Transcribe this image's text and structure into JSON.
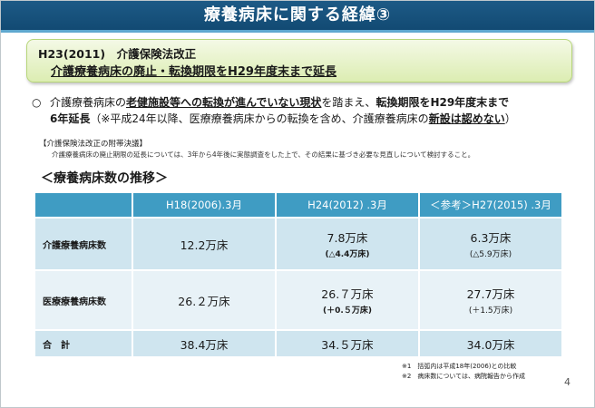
{
  "title": "療養病床に関する経緯③",
  "headline": {
    "line1": "H23(2011)　介護保険法改正",
    "line2": "介護療養病床の廃止・転換期限をH29年度末まで延長"
  },
  "bullet": {
    "mark": "○",
    "p1": "介護療養病床の",
    "p2": "老健施設等への転換が進んでいない現状",
    "p3": "を踏まえ、",
    "p4": "転換期限をH29年度末まで",
    "p5": "6年延長",
    "p6": "（※平成24年以降、医療療養病床からの転換を含め、介護療養病床の",
    "p7": "新設は認めない",
    "p8": "）"
  },
  "note": {
    "heading": "【介護保険法改正の附帯決議】",
    "body": "介護療養病床の廃止期限の延長については、3年から4年後に実態調査をした上で、その結果に基づき必要な見直しについて検討すること。"
  },
  "section_title": "＜療養病床数の推移＞",
  "table": {
    "headers": [
      "H18(2006).3月",
      "H24(2012) .3月",
      "＜参考＞H27(2015) .3月"
    ],
    "rows": [
      {
        "label": "介護療養病床数",
        "cells": [
          {
            "value": "12.2万床",
            "sub": ""
          },
          {
            "value": "7.8万床",
            "sub": "(△4.4万床)"
          },
          {
            "value": "6.3万床",
            "sub": "(△5.9万床)"
          }
        ]
      },
      {
        "label": "医療療養病床数",
        "cells": [
          {
            "value": "26.２万床",
            "sub": ""
          },
          {
            "value": "26.７万床",
            "sub": "(＋0.５万床)"
          },
          {
            "value": "27.7万床",
            "sub": "(＋1.5万床)"
          }
        ]
      },
      {
        "label": "合　計",
        "cells": [
          {
            "value": "38.4万床",
            "sub": ""
          },
          {
            "value": "34.５万床",
            "sub": ""
          },
          {
            "value": "34.0万床",
            "sub": ""
          }
        ]
      }
    ]
  },
  "footnotes": [
    "※1　括弧内は平成18年(2006)との比較",
    "※2　病床数については、病院報告から作成"
  ],
  "page_number": "4"
}
